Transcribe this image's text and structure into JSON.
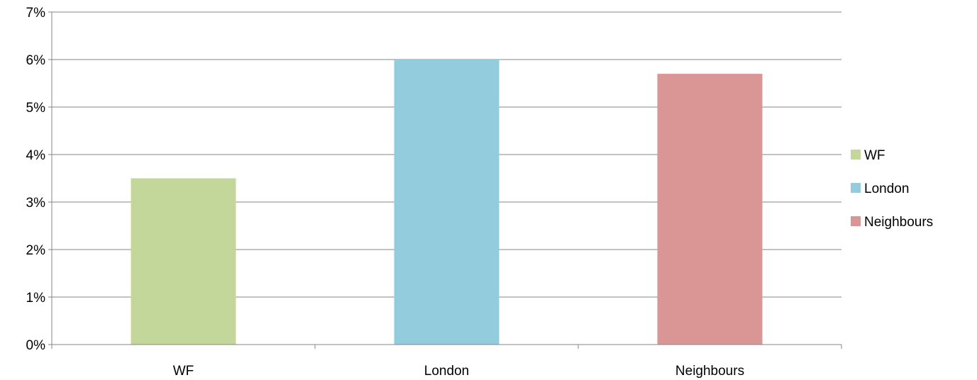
{
  "chart_data": {
    "type": "bar",
    "title": "",
    "xlabel": "",
    "ylabel": "",
    "categories": [
      "WF",
      "London",
      "Neighbours"
    ],
    "values": [
      3.5,
      6.0,
      5.7
    ],
    "value_unit": "%",
    "bar_colors": [
      "#c4d79b",
      "#93cddd",
      "#d99694"
    ],
    "ylim": [
      0,
      7
    ],
    "yticks": [
      0,
      1,
      2,
      3,
      4,
      5,
      6,
      7
    ],
    "ytick_labels": [
      "0%",
      "1%",
      "2%",
      "3%",
      "4%",
      "5%",
      "6%",
      "7%"
    ],
    "grid": true,
    "legend": {
      "position": "right",
      "entries": [
        {
          "label": "WF",
          "color": "#c4d79b"
        },
        {
          "label": "London",
          "color": "#93cddd"
        },
        {
          "label": "Neighbours",
          "color": "#d99694"
        }
      ]
    },
    "gridline_color": "#868686",
    "axis_color": "#868686"
  }
}
